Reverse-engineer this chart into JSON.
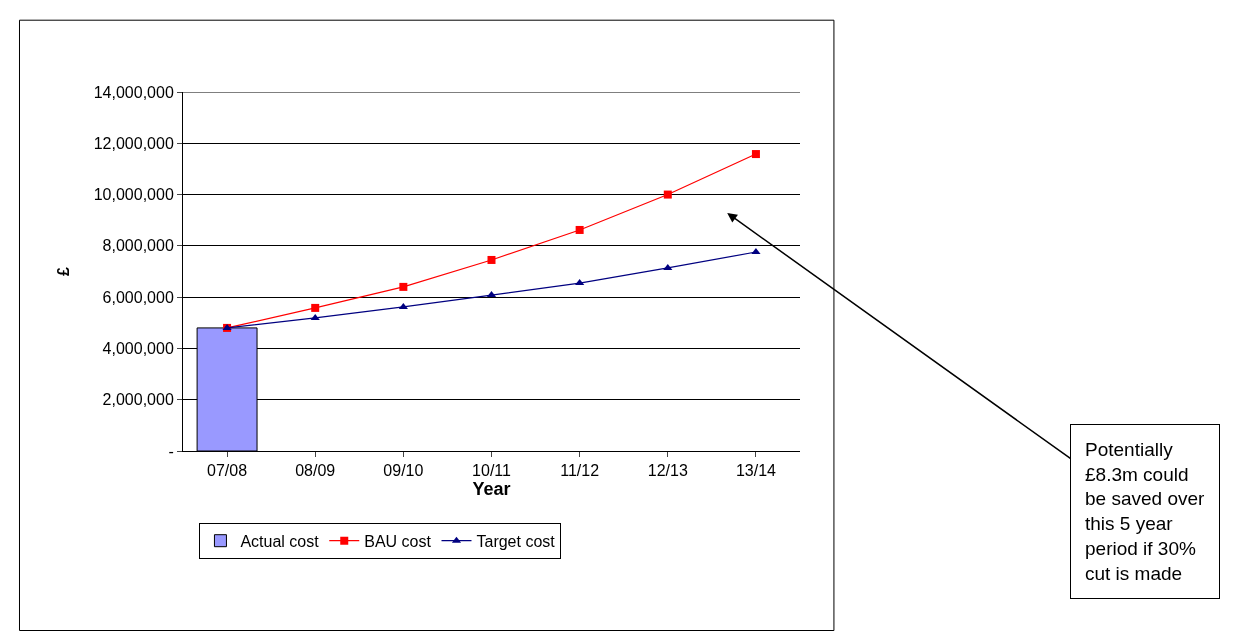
{
  "chart_data": {
    "type": "line",
    "xlabel": "Year",
    "ylabel": "£",
    "categories": [
      "07/08",
      "08/09",
      "09/10",
      "10/11",
      "11/12",
      "12/13",
      "13/14"
    ],
    "series": [
      {
        "name": "Actual cost",
        "type": "bar",
        "color": "#9999ff",
        "values": [
          4800000,
          null,
          null,
          null,
          null,
          null,
          null
        ]
      },
      {
        "name": "BAU cost",
        "color": "#ff0000",
        "marker": "square",
        "values": [
          4800000,
          5580000,
          6400000,
          7450000,
          8620000,
          10000000,
          11580000
        ]
      },
      {
        "name": "Target cost",
        "color": "#000080",
        "marker": "triangle",
        "values": [
          4800000,
          5190000,
          5620000,
          6080000,
          6550000,
          7140000,
          7760000
        ]
      }
    ],
    "ylim": [
      0,
      14000000
    ],
    "yticks": [
      {
        "value": 0,
        "label": "-"
      },
      {
        "value": 2000000,
        "label": "2,000,000"
      },
      {
        "value": 4000000,
        "label": "4,000,000"
      },
      {
        "value": 6000000,
        "label": "6,000,000"
      },
      {
        "value": 8000000,
        "label": "8,000,000"
      },
      {
        "value": 10000000,
        "label": "10,000,000"
      },
      {
        "value": 12000000,
        "label": "12,000,000"
      },
      {
        "value": 14000000,
        "label": "14,000,000"
      }
    ],
    "grid": "y",
    "legend": "bottom",
    "annotations": [
      "Potentially\n£8.3m could\nbe saved over\nthis 5 year\nperiod if 30%\ncut is made"
    ]
  }
}
